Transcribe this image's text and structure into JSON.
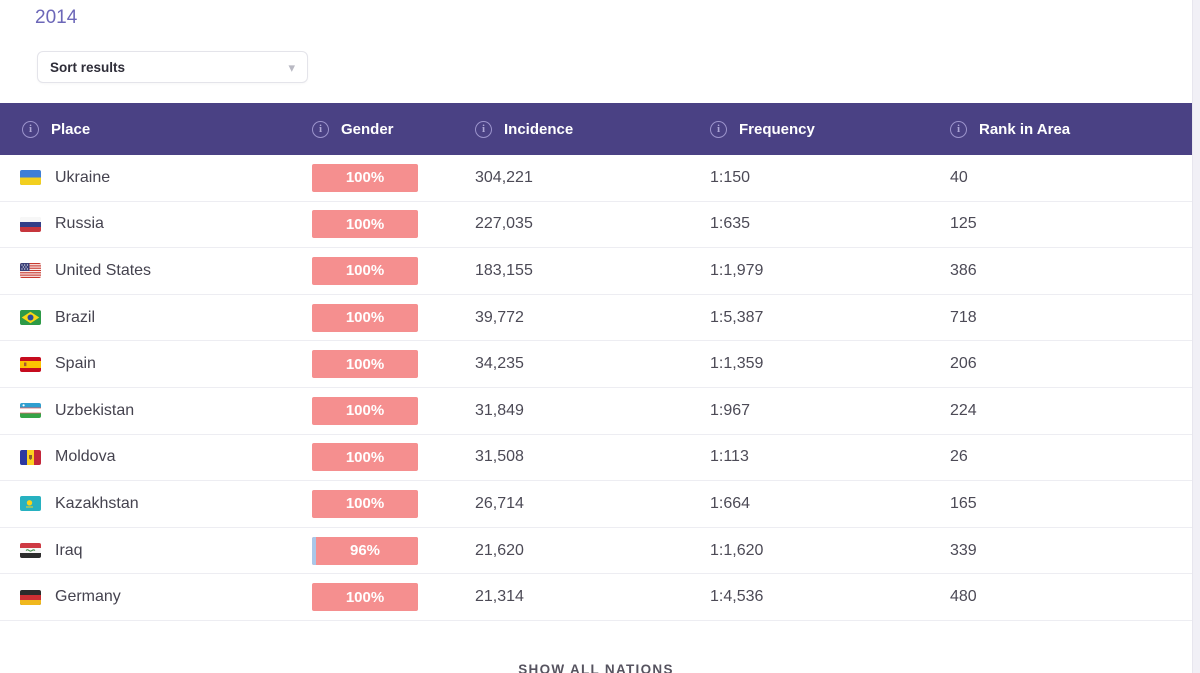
{
  "page": {
    "year_link": "2014",
    "sort_dropdown": {
      "label": "Sort results"
    },
    "show_all_button": "SHOW ALL NATIONS"
  },
  "icons": {
    "info": "i",
    "chevron_down": "▾"
  },
  "colors": {
    "header_bg": "#4a4184",
    "accent_link": "#6c67b8",
    "badge_female": "#f58f8f",
    "badge_male": "#a9c7e9",
    "row_text": "#4c4a56"
  },
  "table": {
    "columns": [
      "Place",
      "Gender",
      "Incidence",
      "Frequency",
      "Rank in Area"
    ],
    "rows": [
      {
        "place": "Ukraine",
        "flag": "ukraine",
        "male_pct": 0,
        "female_pct": 100,
        "gender_label": "100%",
        "incidence": "304,221",
        "frequency": "1:150",
        "rank": "40"
      },
      {
        "place": "Russia",
        "flag": "russia",
        "male_pct": 0,
        "female_pct": 100,
        "gender_label": "100%",
        "incidence": "227,035",
        "frequency": "1:635",
        "rank": "125"
      },
      {
        "place": "United States",
        "flag": "united-states",
        "male_pct": 0,
        "female_pct": 100,
        "gender_label": "100%",
        "incidence": "183,155",
        "frequency": "1:1,979",
        "rank": "386"
      },
      {
        "place": "Brazil",
        "flag": "brazil",
        "male_pct": 0,
        "female_pct": 100,
        "gender_label": "100%",
        "incidence": "39,772",
        "frequency": "1:5,387",
        "rank": "718"
      },
      {
        "place": "Spain",
        "flag": "spain",
        "male_pct": 0,
        "female_pct": 100,
        "gender_label": "100%",
        "incidence": "34,235",
        "frequency": "1:1,359",
        "rank": "206"
      },
      {
        "place": "Uzbekistan",
        "flag": "uzbekistan",
        "male_pct": 0,
        "female_pct": 100,
        "gender_label": "100%",
        "incidence": "31,849",
        "frequency": "1:967",
        "rank": "224"
      },
      {
        "place": "Moldova",
        "flag": "moldova",
        "male_pct": 0,
        "female_pct": 100,
        "gender_label": "100%",
        "incidence": "31,508",
        "frequency": "1:113",
        "rank": "26"
      },
      {
        "place": "Kazakhstan",
        "flag": "kazakhstan",
        "male_pct": 0,
        "female_pct": 100,
        "gender_label": "100%",
        "incidence": "26,714",
        "frequency": "1:664",
        "rank": "165"
      },
      {
        "place": "Iraq",
        "flag": "iraq",
        "male_pct": 4,
        "female_pct": 96,
        "gender_label": "96%",
        "incidence": "21,620",
        "frequency": "1:1,620",
        "rank": "339"
      },
      {
        "place": "Germany",
        "flag": "germany",
        "male_pct": 0,
        "female_pct": 100,
        "gender_label": "100%",
        "incidence": "21,314",
        "frequency": "1:4,536",
        "rank": "480"
      }
    ]
  }
}
